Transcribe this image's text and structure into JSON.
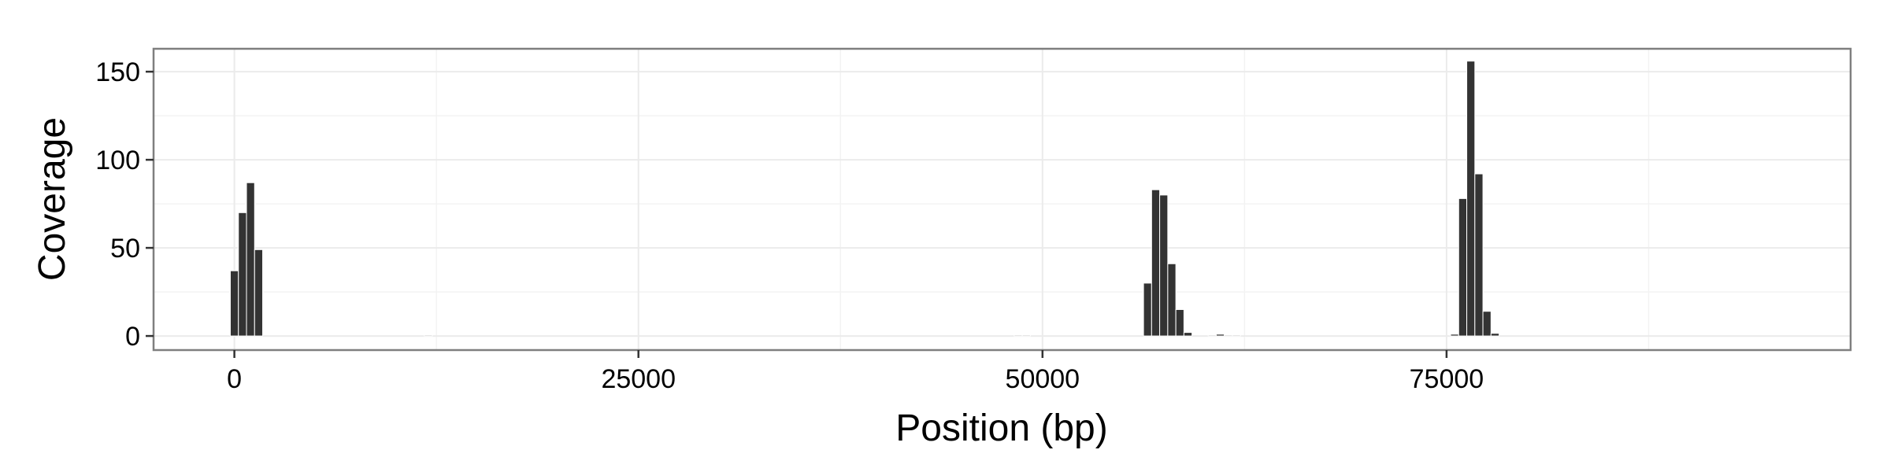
{
  "chart_data": {
    "type": "bar",
    "title": "",
    "xlabel": "Position (bp)",
    "ylabel": "Coverage",
    "xlim": [
      -5000,
      100000
    ],
    "ylim": [
      -8,
      163
    ],
    "x_ticks": [
      0,
      25000,
      50000,
      75000
    ],
    "x_tick_labels": [
      "0",
      "25000",
      "50000",
      "75000"
    ],
    "y_ticks": [
      0,
      50,
      100,
      150
    ],
    "y_tick_labels": [
      "0",
      "50",
      "100",
      "150"
    ],
    "bin_width": 500,
    "grid": true,
    "legend": "none",
    "bar_color": "#333333",
    "panel_background": "#ffffff",
    "grid_color": "#ebebeb",
    "x": [
      0,
      500,
      1000,
      1500,
      12000,
      48500,
      49000,
      56500,
      57000,
      57500,
      58000,
      58500,
      59000,
      60500,
      61000,
      61500,
      62000,
      75500,
      76000,
      76500,
      77000,
      77500,
      78000
    ],
    "values": [
      37,
      70,
      87,
      49,
      0.5,
      0.5,
      0.5,
      30,
      83,
      80,
      41,
      15,
      2,
      0.5,
      1,
      0.5,
      0.5,
      1,
      78,
      156,
      92,
      14,
      1.5
    ]
  }
}
